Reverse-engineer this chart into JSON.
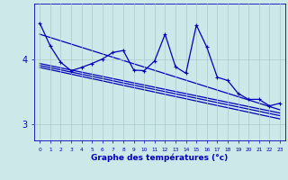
{
  "xlabel": "Graphe des températures (°c)",
  "bg_color": "#cce8e8",
  "grid_color": "#aacccc",
  "line_color": "#0000bb",
  "xlim": [
    -0.5,
    23.5
  ],
  "ylim": [
    2.75,
    4.85
  ],
  "yticks": [
    3,
    4
  ],
  "ytick_labels": [
    "3",
    "4"
  ],
  "xticks": [
    0,
    1,
    2,
    3,
    4,
    5,
    6,
    7,
    8,
    9,
    10,
    11,
    12,
    13,
    14,
    15,
    16,
    17,
    18,
    19,
    20,
    21,
    22,
    23
  ],
  "temp_data": [
    4.55,
    4.2,
    3.95,
    3.82,
    3.87,
    3.93,
    4.0,
    4.1,
    4.13,
    3.83,
    3.82,
    3.97,
    4.38,
    3.88,
    3.78,
    4.52,
    4.18,
    3.72,
    3.67,
    3.47,
    3.38,
    3.38,
    3.28,
    3.32
  ],
  "trends": [
    [
      4.38,
      3.22
    ],
    [
      3.93,
      3.17
    ],
    [
      3.9,
      3.13
    ],
    [
      3.87,
      3.08
    ]
  ],
  "marker_size": 3,
  "line_width": 0.9
}
